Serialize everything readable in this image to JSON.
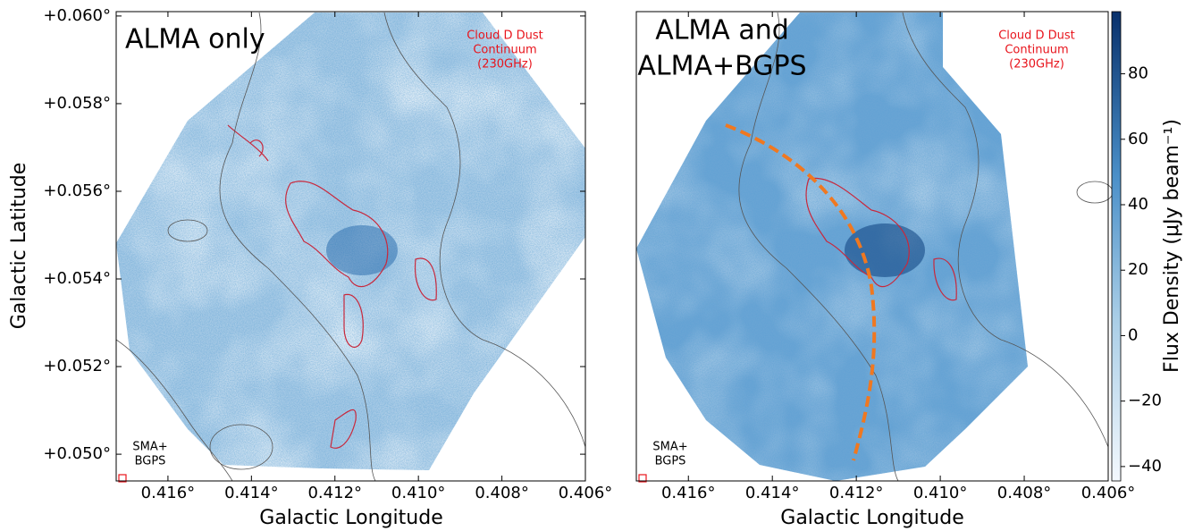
{
  "chart_data": [
    {
      "type": "image",
      "title_lines": [
        "ALMA only"
      ],
      "annotation_lines": [
        "Cloud D Dust",
        "Continuum",
        "(230GHz)"
      ],
      "beam_lines": [
        "SMA+",
        "BGPS"
      ],
      "xlabel": "Galactic Longitude",
      "ylabel": "Galactic Latitude",
      "xlim": [
        0.41724,
        0.406
      ],
      "ylim": [
        0.04939,
        0.0601
      ],
      "xticks": [
        {
          "value": 0.416,
          "label": "0.416°"
        },
        {
          "value": 0.414,
          "label": "0.414°"
        },
        {
          "value": 0.412,
          "label": "0.412°"
        },
        {
          "value": 0.41,
          "label": "0.410°"
        },
        {
          "value": 0.408,
          "label": "0.408°"
        },
        {
          "value": 0.406,
          "label": "0.406°"
        }
      ],
      "yticks": [
        {
          "value": 0.05,
          "label": "+0.050°"
        },
        {
          "value": 0.052,
          "label": "+0.052°"
        },
        {
          "value": 0.054,
          "label": "+0.054°"
        },
        {
          "value": 0.056,
          "label": "+0.056°"
        },
        {
          "value": 0.058,
          "label": "+0.058°"
        },
        {
          "value": 0.06,
          "label": "+0.060°"
        }
      ]
    },
    {
      "type": "image",
      "title_lines": [
        "ALMA and",
        "ALMA+BGPS"
      ],
      "annotation_lines": [
        "Cloud D Dust",
        "Continuum",
        "(230GHz)"
      ],
      "beam_lines": [
        "SMA+",
        "BGPS"
      ],
      "xlabel": "Galactic Longitude",
      "xlim": [
        0.41724,
        0.406
      ],
      "ylim": [
        0.04939,
        0.0601
      ],
      "xticks": [
        {
          "value": 0.416,
          "label": "0.416°"
        },
        {
          "value": 0.414,
          "label": "0.414°"
        },
        {
          "value": 0.412,
          "label": "0.412°"
        },
        {
          "value": 0.41,
          "label": "0.410°"
        },
        {
          "value": 0.408,
          "label": "0.408°"
        },
        {
          "value": 0.406,
          "label": "0.406°"
        }
      ]
    },
    {
      "type": "colorbar",
      "ylabel": "Flux Density (μJy beam⁻¹)",
      "ylim": [
        -44.4,
        99
      ],
      "yticks": [
        {
          "value": -40,
          "label": "−40"
        },
        {
          "value": -20,
          "label": "−20"
        },
        0,
        20,
        40,
        60,
        80
      ]
    }
  ]
}
